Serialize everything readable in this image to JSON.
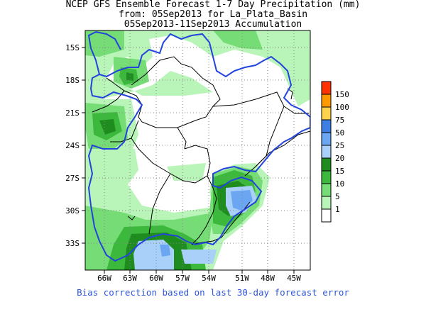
{
  "header": {
    "line1": "NCEP GFS Ensemble Forecast 1-7 Day Precipitation (mm)",
    "line2": "from: 05Sep2013   for La_Plata_Basin",
    "line3": "05Sep2013-11Sep2013 Accumulation"
  },
  "axes": {
    "lat_labels": [
      "15S",
      "18S",
      "21S",
      "24S",
      "27S",
      "30S",
      "33S"
    ],
    "lon_labels": [
      "66W",
      "63W",
      "60W",
      "57W",
      "54W",
      "51W",
      "48W",
      "45W"
    ]
  },
  "legend": {
    "items": [
      {
        "label": "150",
        "color": "#ff3300"
      },
      {
        "label": "100",
        "color": "#ff9900"
      },
      {
        "label": "75",
        "color": "#ffd24d"
      },
      {
        "label": "50",
        "color": "#3d7fe6"
      },
      {
        "label": "25",
        "color": "#6aa6f2"
      },
      {
        "label": "20",
        "color": "#a8d0f8"
      },
      {
        "label": "15",
        "color": "#1e8c1e"
      },
      {
        "label": "10",
        "color": "#3cb83c"
      },
      {
        "label": "5",
        "color": "#76dc76"
      },
      {
        "label": "1",
        "color": "#b9f4b9"
      }
    ],
    "lowest_color": "#ffffff"
  },
  "footer": {
    "note": "Bias correction based on last 30-day forecast error"
  },
  "colors": {
    "basin_outline": "#2244dd",
    "borders": "#000000",
    "grid": "#888888"
  }
}
